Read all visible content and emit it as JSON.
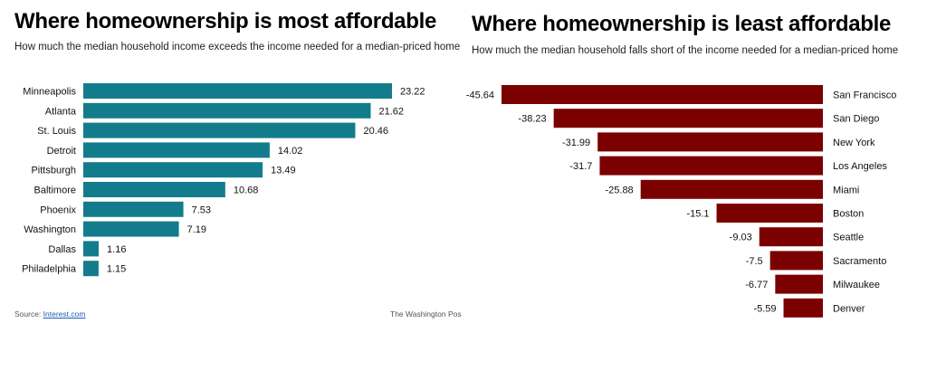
{
  "left": {
    "title": "Where homeownership is most affordable",
    "subtitle": "How much the median household income exceeds the income needed for a median-priced home"
  },
  "right": {
    "title": "Where homeownership is least affordable",
    "subtitle": "How much the median household falls short of the income needed for a median-priced home"
  },
  "footer": {
    "source_prefix": "Source:",
    "source_link": "Interest.com",
    "credit": "The Washington Pos"
  },
  "chart_data": [
    {
      "type": "bar",
      "orientation": "horizontal",
      "title": "Where homeownership is most affordable",
      "subtitle": "How much the median household income exceeds the income needed for a median-priced home",
      "categories": [
        "Minneapolis",
        "Atlanta",
        "St. Louis",
        "Detroit",
        "Pittsburgh",
        "Baltimore",
        "Phoenix",
        "Washington",
        "Dallas",
        "Philadelphia"
      ],
      "values": [
        23.22,
        21.62,
        20.46,
        14.02,
        13.49,
        10.68,
        7.53,
        7.19,
        1.16,
        1.15
      ],
      "color": "#137c8c",
      "xlim": [
        0,
        23.22
      ],
      "grid": false,
      "legend": "none"
    },
    {
      "type": "bar",
      "orientation": "horizontal",
      "title": "Where homeownership is least affordable",
      "subtitle": "How much the median household falls short of the income needed for a median-priced home",
      "categories": [
        "San Francisco",
        "San Diego",
        "New York",
        "Los Angeles",
        "Miami",
        "Boston",
        "Seattle",
        "Sacramento",
        "Milwaukee",
        "Denver"
      ],
      "values": [
        -45.64,
        -38.23,
        -31.99,
        -31.7,
        -25.88,
        -15.1,
        -9.03,
        -7.5,
        -6.77,
        -5.59
      ],
      "color": "#7b0000",
      "xlim": [
        -45.64,
        0
      ],
      "grid": false,
      "legend": "none"
    }
  ]
}
